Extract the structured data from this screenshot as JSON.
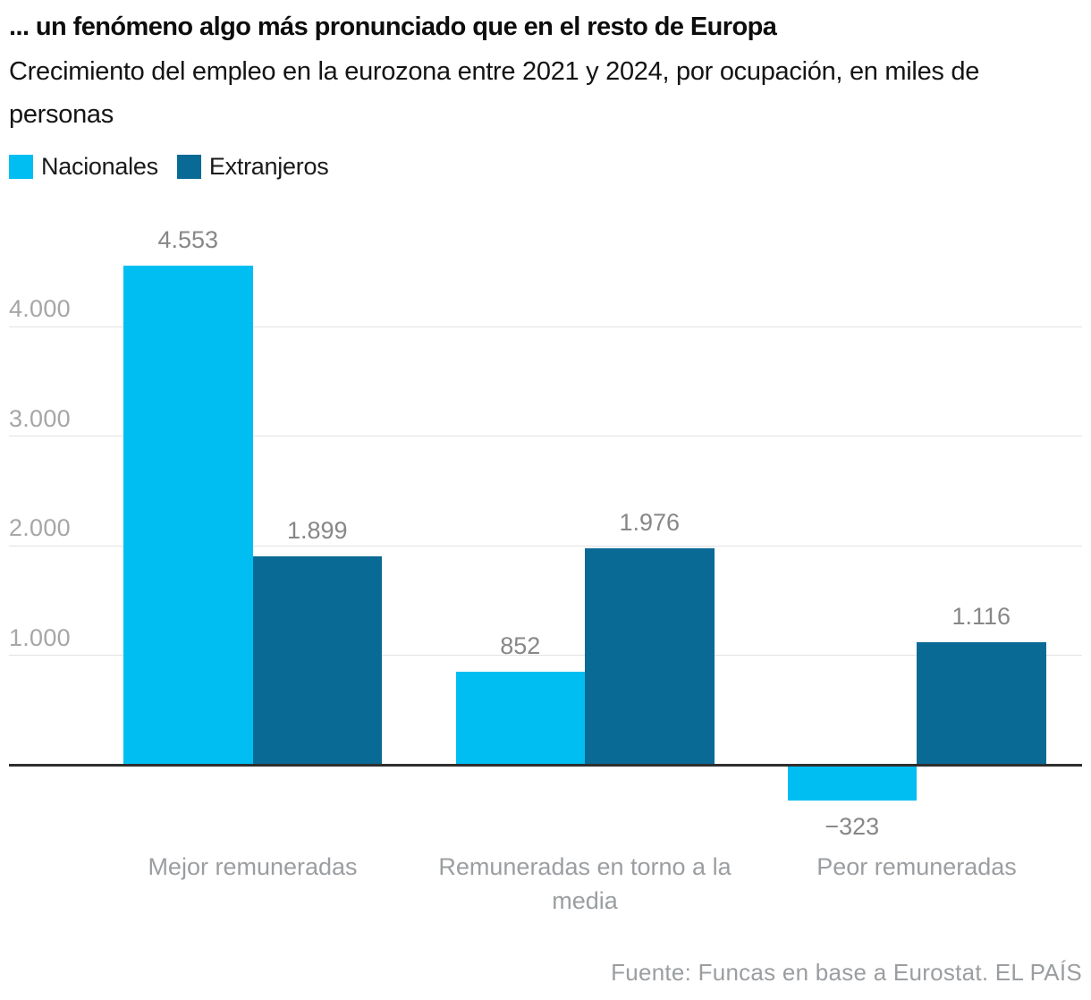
{
  "header": {
    "title": "... un fenómeno algo más pronunciado que en el resto de Europa",
    "subtitle": "Crecimiento del empleo en la eurozona entre 2021 y 2024, por ocupación, en miles de personas"
  },
  "legend": [
    {
      "label": "Nacionales",
      "color": "#00bef2"
    },
    {
      "label": "Extranjeros",
      "color": "#0a6a96"
    }
  ],
  "chart_data": {
    "type": "bar",
    "title": "Crecimiento del empleo en la eurozona entre 2021 y 2024, por ocupación, en miles de personas",
    "categories": [
      "Mejor remuneradas",
      "Remuneradas en torno a la media",
      "Peor remuneradas"
    ],
    "series": [
      {
        "name": "Nacionales",
        "color": "#00bef2",
        "values": [
          4553,
          852,
          -323
        ],
        "labels": [
          "4.553",
          "852",
          "−323"
        ]
      },
      {
        "name": "Extranjeros",
        "color": "#0a6a96",
        "values": [
          1899,
          1976,
          1116
        ],
        "labels": [
          "1.899",
          "1.976",
          "1.116"
        ]
      }
    ],
    "yticks": [
      {
        "value": 1000,
        "label": "1.000"
      },
      {
        "value": 2000,
        "label": "2.000"
      },
      {
        "value": 3000,
        "label": "3.000"
      },
      {
        "value": 4000,
        "label": "4.000"
      }
    ],
    "ylim": [
      -500,
      5000
    ],
    "grid": "horizontal",
    "legend_position": "top-left",
    "xlabel": "",
    "ylabel": "miles de personas"
  },
  "footer": {
    "source": "Fuente: Funcas en base a Eurostat. EL PAÍS"
  }
}
